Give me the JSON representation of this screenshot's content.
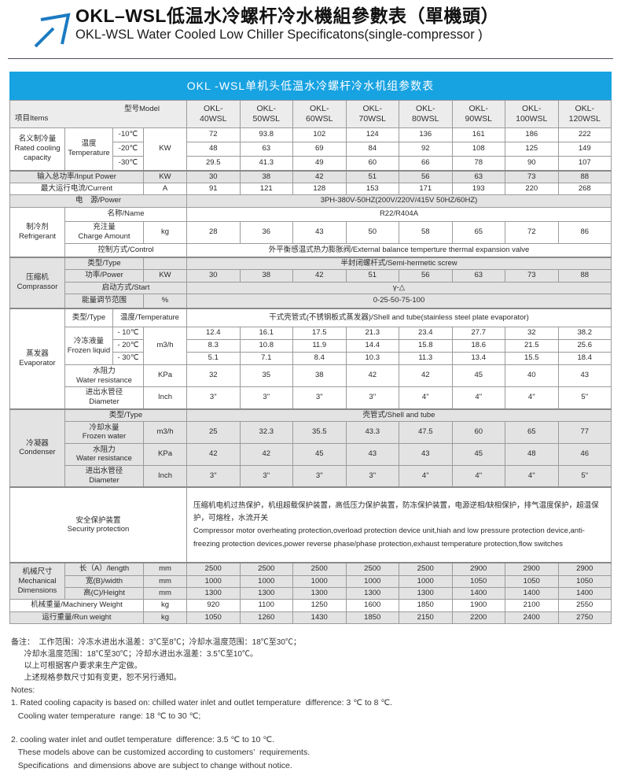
{
  "colors": {
    "banner_blue": "#17A2E2",
    "arrow_blue": "#1B7AC2",
    "row_gray": "#E3E3E3",
    "border_gray": "#9b9b9b"
  },
  "page": {
    "title_zh": "OKL–WSL低温水冷螺杆冷水機組參數表（單機頭）",
    "title_en": "OKL-WSL Water Cooled Low Chiller Specificatons(single-compressor )",
    "banner": "OKL -WSL单机头低温水冷螺杆冷水机组参数表"
  },
  "table": {
    "corner": {
      "items": "项目Items",
      "model": "型号Model"
    },
    "models": [
      "OKL-\n40WSL",
      "OKL-\n50WSL",
      "OKL-\n60WSL",
      "OKL-\n70WSL",
      "OKL-\n80WSL",
      "OKL-\n90WSL",
      "OKL-\n100WSL",
      "OKL-\n120WSL"
    ],
    "rated": {
      "label_zh": "名义制冷量",
      "label_en": "Rated cooling capacity",
      "temp_zh": "温度",
      "temp_en": "Temperature",
      "unit": "KW",
      "r10": {
        "temp": "-10℃",
        "values": [
          72,
          93.8,
          102,
          124,
          136,
          161,
          186,
          222
        ]
      },
      "r20": {
        "temp": "-20℃",
        "values": [
          48,
          63,
          69,
          84,
          92,
          108,
          125,
          149
        ]
      },
      "r30": {
        "temp": "-30℃",
        "values": [
          29.5,
          41.3,
          49,
          60,
          66,
          78,
          90,
          107
        ]
      }
    },
    "input_power": {
      "label": "输入总功率/Input Power",
      "unit": "KW",
      "values": [
        30,
        38,
        42,
        51,
        56,
        63,
        73,
        88
      ]
    },
    "current": {
      "label": "最大运行电流/Current",
      "unit": "A",
      "values": [
        91,
        121,
        128,
        153,
        171,
        193,
        220,
        268
      ]
    },
    "power_supply": {
      "label": "电　源/Power",
      "value": "3PH-380V-50HZ(200V/220V/415V  50HZ/60HZ)"
    },
    "refrigerant": {
      "label_zh": "制冷剂",
      "label_en": "Refrigerant",
      "name_label": "名称/Name",
      "name_value": "R22/R404A",
      "charge_zh": "充注量",
      "charge_en": "Charge Amount",
      "charge_unit": "kg",
      "charge_values": [
        28,
        36,
        43,
        50,
        58,
        65,
        72,
        86
      ],
      "control_label": "控制方式/Control",
      "control_value": "外平衡感温式热力膨胀阀/External balance temperture thermal expansion valve"
    },
    "compressor": {
      "label_zh": "压缩机",
      "label_en": "Comprassor",
      "type_label": "类型/Type",
      "type_value": "半封闭螺杆式/Semi-hermetic screw",
      "power_label": "功率/Power",
      "power_unit": "KW",
      "power_values": [
        30,
        38,
        42,
        51,
        56,
        63,
        73,
        88
      ],
      "start_label": "启动方式/Start",
      "start_value": "γ-△",
      "energy_label": "能量调节范围",
      "energy_unit": "%",
      "energy_value": "0-25-50-75-100"
    },
    "evaporator": {
      "label_zh": "蒸发器",
      "label_en": "Evaporator",
      "type_label": "类型/Type",
      "temp_label": "温度/Temperature",
      "type_value": "干式壳管式(不锈钢板式蒸发器)/Shell and tube(stainless steel plate evaporator)",
      "frozen_zh": "冷冻液量",
      "frozen_en": "Frozen liquid",
      "frozen_unit": "m3/h",
      "f10": {
        "temp": "- 10℃",
        "values": [
          12.4,
          16.1,
          17.5,
          21.3,
          23.4,
          27.7,
          32,
          38.2
        ]
      },
      "f20": {
        "temp": "- 20℃",
        "values": [
          8.3,
          10.8,
          11.9,
          14.4,
          15.8,
          18.6,
          21.5,
          25.6
        ]
      },
      "f30": {
        "temp": "- 30℃",
        "values": [
          5.1,
          7.1,
          8.4,
          10.3,
          11.3,
          13.4,
          15.5,
          18.4
        ]
      },
      "resist_zh": "水阻力",
      "resist_en": "Water resistance",
      "resist_unit": "KPa",
      "resist_values": [
        32,
        35,
        38,
        42,
        42,
        45,
        40,
        43
      ],
      "diam_zh": "进出水管径",
      "diam_en": "Diameter",
      "diam_unit": "Inch",
      "diam_values": [
        "3\"",
        "3\"",
        "3\"",
        "3\"",
        "4\"",
        "4\"",
        "4\"",
        "5\""
      ]
    },
    "condenser": {
      "label_zh": "冷凝器",
      "label_en": "Condenser",
      "type_label": "类型/Type",
      "type_value": "壳管式/Shell and tube",
      "water_zh": "冷却水量",
      "water_en": "Frozen water",
      "water_unit": "m3/h",
      "water_values": [
        25,
        32.3,
        35.5,
        43.3,
        47.5,
        60,
        65,
        77
      ],
      "resist_zh": "水阻力",
      "resist_en": "Water resistance",
      "resist_unit": "KPa",
      "resist_values": [
        42,
        42,
        45,
        43,
        43,
        45,
        48,
        46
      ],
      "diam_zh": "进出水管径",
      "diam_en": "Diameter",
      "diam_unit": "Inch",
      "diam_values": [
        "3\"",
        "3\"",
        "3\"",
        "3\"",
        "4\"",
        "4\"",
        "4\"",
        "5\""
      ]
    },
    "security": {
      "label_zh": "安全保护装置",
      "label_en": "Security protection",
      "desc_zh": "压缩机电机过热保护，机组超载保护装置，高低压力保护装置，防冻保护装置，电源逆相/缺相保护，排气温度保护，超温保护，可熔栓，水流开关",
      "desc_en": "Compressor motor overheating protection,overload protection device unit,hiah and low pressure protection device,anti-freezing protection devices,power reverse phase/phase protection,exhaust temperature protection,flow switches"
    },
    "dimensions": {
      "label_zh": "机械尺寸",
      "label_en": "Mechanical Dimensions",
      "length": {
        "label": "长（A）/length",
        "unit": "mm",
        "values": [
          2500,
          2500,
          2500,
          2500,
          2500,
          2900,
          2900,
          2900
        ]
      },
      "width": {
        "label": "宽(B)/width",
        "unit": "mm",
        "values": [
          1000,
          1000,
          1000,
          1000,
          1000,
          1050,
          1050,
          1050
        ]
      },
      "height": {
        "label": "高(C)/Height",
        "unit": "mm",
        "values": [
          1300,
          1300,
          1300,
          1300,
          1300,
          1400,
          1400,
          1400
        ]
      }
    },
    "machinery_weight": {
      "label": "机械重量/Machinery Weight",
      "unit": "kg",
      "values": [
        920,
        1100,
        1250,
        1600,
        1850,
        1900,
        2100,
        2550
      ]
    },
    "run_weight": {
      "label": "运行重量/Run weight",
      "unit": "kg",
      "values": [
        1050,
        1260,
        1430,
        1850,
        2150,
        2200,
        2400,
        2750
      ]
    }
  },
  "notes": {
    "zh": [
      "备注：  工作范围：冷冻水进出水温差：3℃至8℃；冷却水温度范围：18℃至30℃；",
      "      冷却水温度范围：18℃至30℃；冷却水进出水温差：3.5℃至10℃。",
      "      以上可根据客户要求来生产定做。",
      "      上述规格参数尺寸如有变更，恕不另行通知。"
    ],
    "en": [
      "Notes:",
      "1. Rated cooling capacity is based on: chilled water inlet and outlet temperature  difference: 3 ℃ to 8 ℃.",
      "   Cooling water temperature  range: 18 ℃ to 30 ℃;",
      "",
      "2. cooling water inlet and outlet temperature  difference: 3.5 ℃ to 10 ℃.",
      "   These models above can be customized according to customers’  requirements.",
      "   Specifications  and dimensions above are subject to change without notice."
    ]
  }
}
